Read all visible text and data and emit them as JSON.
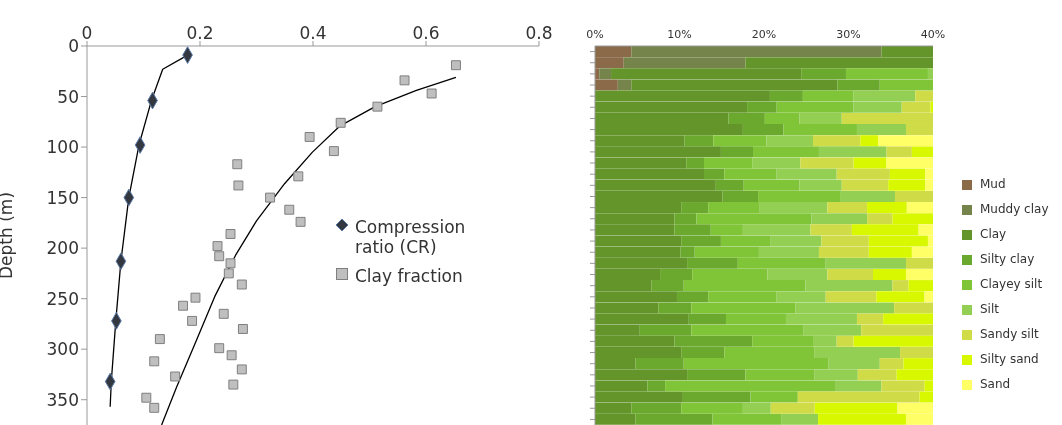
{
  "chart_data": [
    {
      "type": "scatter",
      "ylabel": "Depth (m)",
      "xlim": [
        0,
        0.8
      ],
      "xticks": [
        0,
        0.2,
        0.4,
        0.6,
        0.8
      ],
      "ylim": [
        375,
        0
      ],
      "yticks": [
        0,
        50,
        100,
        150,
        200,
        250,
        300,
        350
      ],
      "grid": false,
      "legend": "right",
      "series": [
        {
          "name": "Compression ratio (CR)",
          "type": "scatter",
          "marker": "diamond",
          "color": "#33373f",
          "x": [
            0.178,
            0.116,
            0.094,
            0.074,
            0.06,
            0.052,
            0.041
          ],
          "values": [
            9,
            54,
            98,
            150,
            213,
            272,
            332
          ]
        },
        {
          "name": "Clay fraction",
          "type": "scatter",
          "marker": "square",
          "color": "#bfbfbf",
          "x": [
            0.653,
            0.562,
            0.61,
            0.514,
            0.449,
            0.394,
            0.437,
            0.266,
            0.268,
            0.374,
            0.324,
            0.358,
            0.378,
            0.254,
            0.231,
            0.234,
            0.254,
            0.251,
            0.274,
            0.192,
            0.17,
            0.242,
            0.186,
            0.276,
            0.129,
            0.234,
            0.256,
            0.119,
            0.274,
            0.156,
            0.259,
            0.105,
            0.119
          ],
          "values": [
            19,
            34,
            47,
            60,
            76,
            90,
            104,
            117,
            138,
            129,
            150,
            162,
            174,
            186,
            198,
            208,
            215,
            225,
            236,
            249,
            257,
            265,
            272,
            280,
            290,
            299,
            306,
            312,
            320,
            327,
            335,
            348,
            358
          ]
        },
        {
          "type": "line",
          "marker": "none",
          "color": "#000000",
          "x": [
            0.175,
            0.134,
            0.114,
            0.092,
            0.074,
            0.06,
            0.051,
            0.043,
            0.041
          ],
          "values": [
            10,
            23,
            54,
            98,
            150,
            213,
            272,
            332,
            357
          ]
        },
        {
          "type": "line",
          "marker": "none",
          "color": "#000000",
          "x": [
            0.653,
            0.583,
            0.51,
            0.448,
            0.399,
            0.35,
            0.3,
            0.263,
            0.226,
            0.19,
            0.159,
            0.132
          ],
          "values": [
            31,
            44,
            60,
            79,
            105,
            136,
            173,
            207,
            248,
            296,
            337,
            375
          ]
        }
      ]
    },
    {
      "type": "bar",
      "orientation": "horizontal",
      "stacked": true,
      "tick_labels": "x",
      "grid": false,
      "legend": "right",
      "xlim": [
        0,
        40
      ],
      "xticks": [
        {
          "value": 0,
          "label": "0%"
        },
        {
          "value": 10,
          "label": "10%"
        },
        {
          "value": 20,
          "label": "20%"
        },
        {
          "value": 30,
          "label": "30%"
        },
        {
          "value": 40,
          "label": "40%"
        }
      ],
      "categories": [
        null,
        null,
        null,
        null,
        null,
        null,
        null,
        null,
        null,
        null,
        null,
        null,
        null,
        null,
        null,
        null,
        null,
        null,
        null,
        null,
        null,
        null,
        null,
        null,
        null,
        null,
        null,
        null,
        null,
        null,
        null,
        null,
        null,
        null
      ],
      "series": [
        {
          "name": "Mud",
          "color": "#8b6a4a",
          "values": [
            4.3,
            3.4,
            0.5,
            2.7,
            0,
            0,
            0,
            0,
            0,
            0,
            0,
            0,
            0,
            0,
            0,
            0,
            0,
            0,
            0,
            0,
            0,
            0,
            0,
            0,
            0,
            0,
            0,
            0,
            0,
            0,
            0,
            0,
            0,
            0
          ]
        },
        {
          "name": "Muddy clay",
          "color": "#74844a",
          "values": [
            29.6,
            14.4,
            1.4,
            1.6,
            0,
            0,
            0,
            0,
            0,
            0,
            0,
            0,
            0,
            0,
            0,
            0,
            0,
            0,
            0,
            0,
            0,
            0,
            0,
            0,
            0,
            0,
            0,
            0,
            0,
            0,
            0,
            0,
            0,
            0
          ]
        },
        {
          "name": "Clay",
          "color": "#63952a",
          "values": [
            6.1,
            22.2,
            22.5,
            24.4,
            20.7,
            18.0,
            15.8,
            17.5,
            10.6,
            14.9,
            10.8,
            12.9,
            14.3,
            15.1,
            10.2,
            9.4,
            9.4,
            10.2,
            10.1,
            10.9,
            7.7,
            6.7,
            9.7,
            7.5,
            11.1,
            5.3,
            9.4,
            10.2,
            4.8,
            10.9,
            6.2,
            10.4,
            4.3,
            4.8
          ]
        },
        {
          "name": "Silty clay",
          "color": "#6aa82e",
          "values": [
            0,
            0,
            5.3,
            5.0,
            3.9,
            3.5,
            4.3,
            4.8,
            3.4,
            3.8,
            2.1,
            2.4,
            3.3,
            4.2,
            3.2,
            2.6,
            4.3,
            4.7,
            1.7,
            6.0,
            3.8,
            3.8,
            3.7,
            3.9,
            4.4,
            6.1,
            9.2,
            5.1,
            5.7,
            6.9,
            2.1,
            8.0,
            5.9,
            9.1
          ]
        },
        {
          "name": "Clayey silt",
          "color": "#80c438",
          "values": [
            0,
            0,
            9.7,
            6.3,
            6.0,
            9.1,
            4.1,
            8.7,
            6.3,
            7.8,
            5.7,
            6.2,
            6.6,
            9.7,
            6.1,
            13.6,
            3.8,
            5.9,
            7.6,
            10.4,
            8.9,
            14.4,
            8.1,
            12.3,
            7.1,
            13.3,
            7.2,
            10.7,
            17.1,
            8.2,
            20.1,
            5.6,
            7.3,
            8.2
          ]
        },
        {
          "name": "Silt",
          "color": "#92cf52",
          "values": [
            0,
            0,
            0.6,
            0,
            7.3,
            5.7,
            5.0,
            5.8,
            5.5,
            8.0,
            5.7,
            7.1,
            5.0,
            6.5,
            8.0,
            6.6,
            8.0,
            6.0,
            7.1,
            9.5,
            7.1,
            10.3,
            5.8,
            11.7,
            8.4,
            6.8,
            2.8,
            10.1,
            6.1,
            5.1,
            5.5,
            0,
            3.3,
            4.3
          ]
        },
        {
          "name": "Sandy silt",
          "color": "#cfdc48",
          "values": [
            0,
            0,
            0,
            0,
            2.1,
            3.4,
            10.8,
            3.2,
            5.6,
            3.0,
            6.3,
            6.3,
            5.5,
            4.5,
            4.7,
            3.0,
            4.9,
            5.6,
            5.9,
            3.2,
            5.4,
            1.9,
            6.0,
            4.6,
            3.1,
            8.5,
            2.0,
            3.9,
            2.8,
            4.6,
            5.1,
            14.4,
            5.2,
            0
          ]
        },
        {
          "name": "Silty sand",
          "color": "#d8f800",
          "values": [
            0,
            0,
            0,
            0,
            0,
            0.3,
            0,
            0,
            2.1,
            2.5,
            3.9,
            4.2,
            4.4,
            0,
            4.7,
            4.8,
            7.9,
            7.0,
            5.1,
            0,
            3.9,
            2.9,
            5.7,
            0,
            5.9,
            0,
            9.4,
            0,
            3.5,
            4.3,
            1.0,
            1.6,
            9.8,
            10.4
          ]
        },
        {
          "name": "Sand",
          "color": "#ffff66",
          "values": [
            0,
            0,
            0,
            0,
            0,
            0,
            0,
            0,
            6.5,
            0,
            5.5,
            0.9,
            0.9,
            0,
            3.1,
            0,
            1.7,
            0.6,
            2.5,
            0,
            3.2,
            0,
            1.0,
            0,
            0,
            0,
            0,
            0,
            0,
            0,
            0,
            0,
            4.2,
            3.2
          ]
        }
      ]
    }
  ]
}
